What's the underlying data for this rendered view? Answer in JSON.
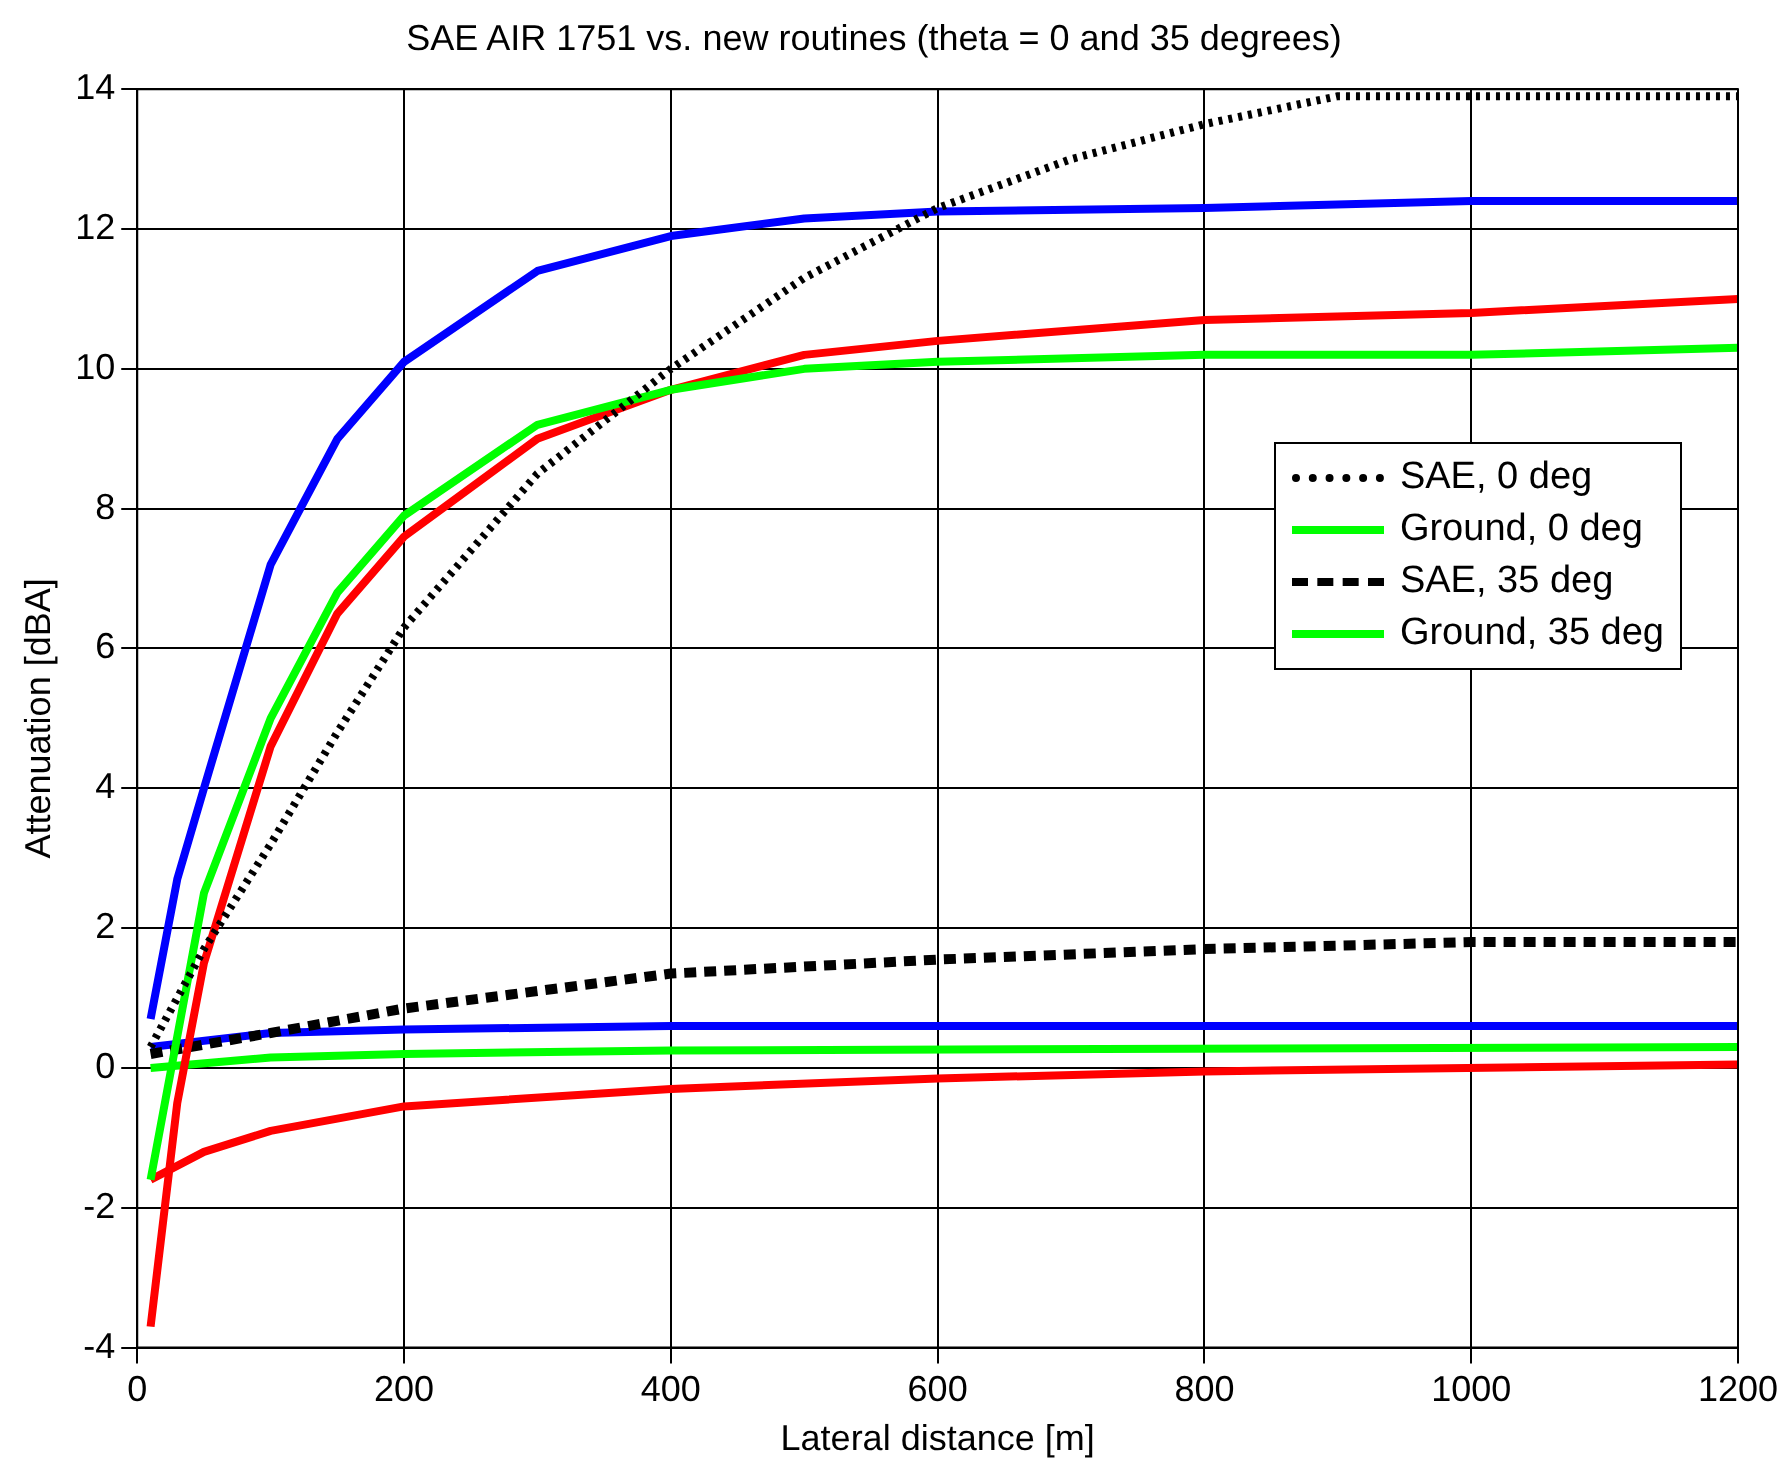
{
  "chart_data": {
    "type": "line",
    "title": "SAE AIR 1751 vs. new routines (theta = 0 and 35 degrees)",
    "xlabel": "Lateral distance [m]",
    "ylabel": "Attenuation [dBA]",
    "xlim": [
      0,
      1200
    ],
    "xticks": [
      0,
      200,
      400,
      600,
      800,
      1000,
      1200
    ],
    "ylim": [
      -4,
      14
    ],
    "yticks": [
      -4,
      -2,
      0,
      2,
      4,
      6,
      8,
      10,
      12,
      14
    ],
    "grid": true,
    "legend": "right",
    "marker": "none",
    "series": [
      {
        "name": "SAE, 0 deg",
        "color": "#000000",
        "line_style": "dotted",
        "x": [
          10,
          50,
          100,
          150,
          200,
          300,
          400,
          500,
          600,
          700,
          800,
          900,
          1000,
          1200
        ],
        "values": [
          0.3,
          1.7,
          3.2,
          4.8,
          6.3,
          8.5,
          10,
          11.3,
          12.3,
          13,
          13.5,
          13.9,
          13.9,
          13.9
        ]
      },
      {
        "name": "Ground, 0 deg",
        "color": "#00ff00",
        "line_style": "solid",
        "x": [
          10,
          50,
          100,
          150,
          200,
          300,
          400,
          500,
          600,
          800,
          1000,
          1200
        ],
        "values": [
          -1.6,
          2.5,
          5,
          6.8,
          7.9,
          9.2,
          9.7,
          10,
          10.1,
          10.2,
          10.2,
          10.3
        ]
      },
      {
        "color": "#ff0000",
        "line_style": "solid",
        "x": [
          10,
          30,
          50,
          100,
          150,
          200,
          300,
          400,
          500,
          600,
          800,
          1000,
          1200
        ],
        "values": [
          -3.7,
          -0.5,
          1.5,
          4.6,
          6.5,
          7.6,
          9,
          9.7,
          10.2,
          10.4,
          10.7,
          10.8,
          11
        ]
      },
      {
        "color": "#0000ff",
        "line_style": "solid",
        "x": [
          10,
          30,
          50,
          100,
          150,
          200,
          300,
          400,
          500,
          600,
          800,
          1000,
          1200
        ],
        "values": [
          0.7,
          2.7,
          4,
          7.2,
          9,
          10.1,
          11.4,
          11.9,
          12.15,
          12.25,
          12.3,
          12.4,
          12.4
        ]
      },
      {
        "name": "SAE, 35 deg",
        "color": "#000000",
        "line_style": "dashed",
        "x": [
          10,
          100,
          200,
          300,
          400,
          600,
          800,
          1000,
          1200
        ],
        "values": [
          0.2,
          0.5,
          0.85,
          1.1,
          1.35,
          1.55,
          1.7,
          1.8,
          1.8
        ]
      },
      {
        "name": "Ground, 35 deg",
        "color": "#00ff00",
        "line_style": "solid",
        "x": [
          10,
          100,
          200,
          400,
          1200
        ],
        "values": [
          0,
          0.15,
          0.2,
          0.25,
          0.3
        ]
      },
      {
        "color": "#ff0000",
        "line_style": "solid",
        "x": [
          10,
          50,
          100,
          200,
          400,
          600,
          800,
          1200
        ],
        "values": [
          -1.6,
          -1.2,
          -0.9,
          -0.55,
          -0.3,
          -0.15,
          -0.05,
          0.05
        ]
      },
      {
        "color": "#0000ff",
        "line_style": "solid",
        "x": [
          10,
          100,
          200,
          400,
          1200
        ],
        "values": [
          0.3,
          0.5,
          0.55,
          0.6,
          0.6
        ]
      }
    ]
  }
}
